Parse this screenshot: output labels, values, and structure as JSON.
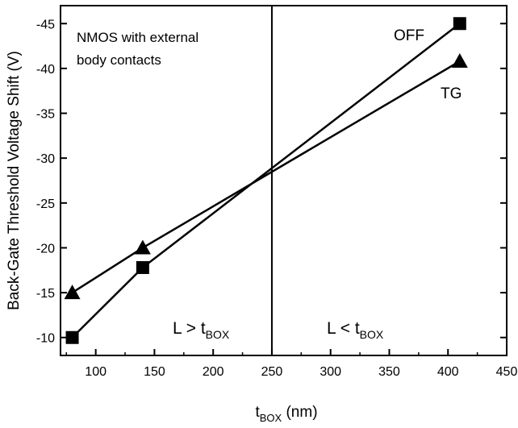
{
  "chart_data": {
    "type": "line",
    "title": "",
    "xlabel": {
      "main": "t",
      "sub": "BOX",
      "suffix": " (nm)"
    },
    "ylabel": "Back-Gate Threshold Voltage Shift (V)",
    "xlim": [
      70,
      450
    ],
    "ylim": [
      -8,
      -47
    ],
    "x_ticks": [
      100,
      150,
      200,
      250,
      300,
      350,
      400,
      450
    ],
    "y_ticks": [
      -10,
      -15,
      -20,
      -25,
      -30,
      -35,
      -40,
      -45
    ],
    "grid": false,
    "divider_x": 250,
    "series": [
      {
        "name": "OFF",
        "marker": "square",
        "x": [
          80,
          140,
          410
        ],
        "y": [
          -10,
          -17.8,
          -45
        ]
      },
      {
        "name": "TG",
        "marker": "triangle",
        "x": [
          80,
          140,
          410
        ],
        "y": [
          -15,
          -20,
          -40.8
        ]
      }
    ],
    "annotations": {
      "device_line1": "NMOS with external",
      "device_line2": "body contacts",
      "left_region": {
        "main": "L > t",
        "sub": "BOX"
      },
      "right_region": {
        "main": "L < t",
        "sub": "BOX"
      }
    }
  }
}
